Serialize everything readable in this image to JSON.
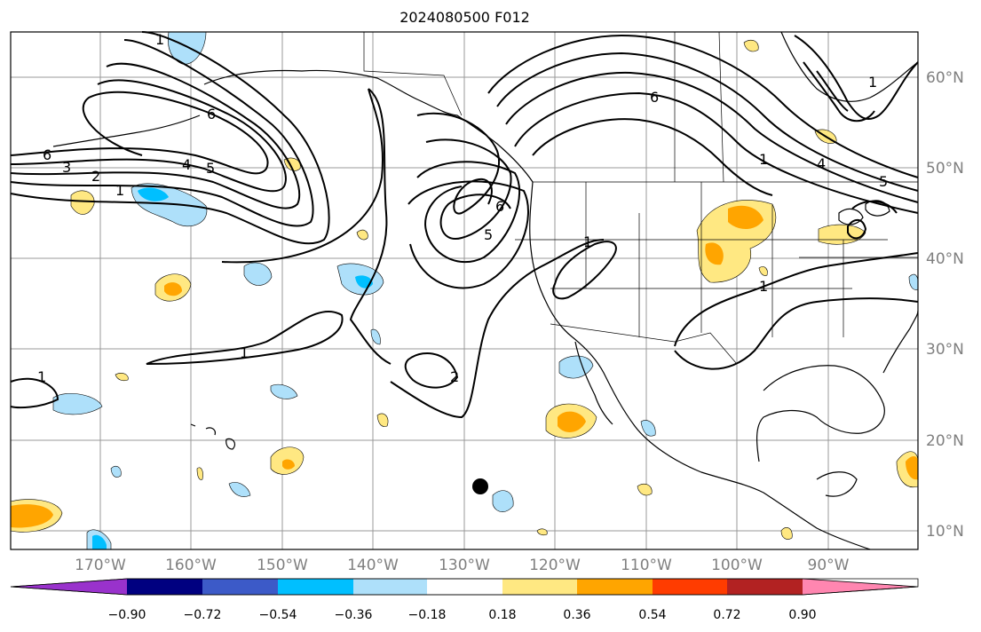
{
  "title": "2024080500 F012",
  "colors": {
    "neg_090": "#9932cc",
    "neg_072": "#000080",
    "neg_054": "#3c5ac8",
    "neg_036": "#00bfff",
    "neg_018": "#aee0fa",
    "zero": "#ffffff",
    "pos_018": "#ffe882",
    "pos_036": "#ffa500",
    "pos_054": "#ff3c00",
    "pos_072": "#b22222",
    "pos_090": "#ff86b0",
    "grid": "#999999",
    "coast": "#000000",
    "tick_label": "#7f7f7f"
  },
  "lat_labels": [
    "60°N",
    "50°N",
    "40°N",
    "30°N",
    "20°N",
    "10°N"
  ],
  "lon_labels": [
    "170°W",
    "160°W",
    "150°W",
    "140°W",
    "130°W",
    "120°W",
    "110°W",
    "100°W",
    "90°W"
  ],
  "colorbar": {
    "ticks": [
      "−0.90",
      "−0.72",
      "−0.54",
      "−0.36",
      "−0.18",
      "0.18",
      "0.36",
      "0.54",
      "0.72",
      "0.90"
    ]
  },
  "contour_labels": [
    {
      "text": "1"
    },
    {
      "text": "2"
    },
    {
      "text": "3"
    },
    {
      "text": "4"
    },
    {
      "text": "5"
    },
    {
      "text": "6"
    },
    {
      "text": "6"
    },
    {
      "text": "1"
    },
    {
      "text": "1"
    },
    {
      "text": "2"
    },
    {
      "text": "5"
    },
    {
      "text": "6"
    },
    {
      "text": "6"
    },
    {
      "text": "1"
    },
    {
      "text": "1"
    },
    {
      "text": "1"
    },
    {
      "text": "5"
    },
    {
      "text": "4"
    },
    {
      "text": "1"
    },
    {
      "text": "1"
    }
  ]
}
